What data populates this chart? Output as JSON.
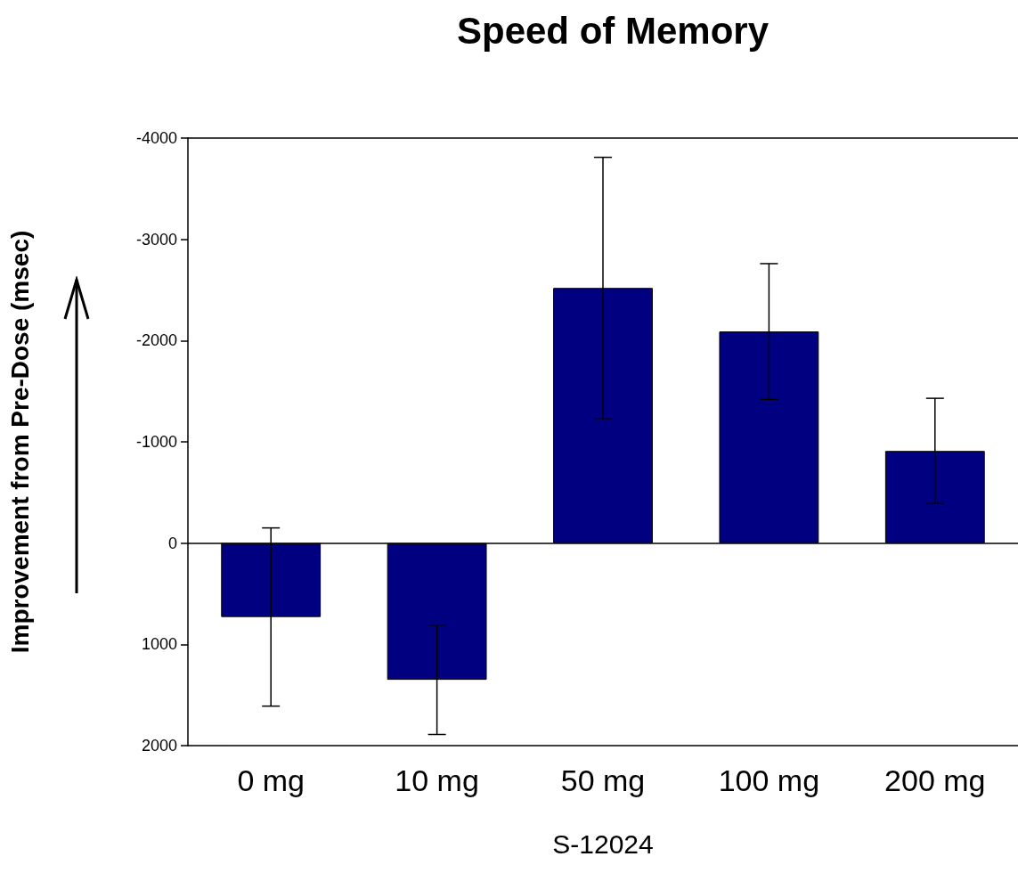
{
  "chart_data": {
    "type": "bar",
    "title": "Speed of Memory",
    "xlabel": "S-12024",
    "ylabel": "Improvement from Pre-Dose (msec)",
    "categories": [
      "0 mg",
      "10 mg",
      "50 mg",
      "100 mg",
      "200 mg"
    ],
    "values": [
      730,
      1350,
      -2520,
      -2090,
      -910
    ],
    "errors": [
      880,
      540,
      1290,
      670,
      520
    ],
    "color": "#000080",
    "ylim": [
      2000,
      -4000
    ],
    "yticks": [
      -4000,
      -3000,
      -2000,
      -1000,
      0,
      1000,
      2000
    ],
    "ref_lines": [
      {
        "axis": "y",
        "value": 0,
        "color": "#000000"
      }
    ],
    "grid": false
  }
}
